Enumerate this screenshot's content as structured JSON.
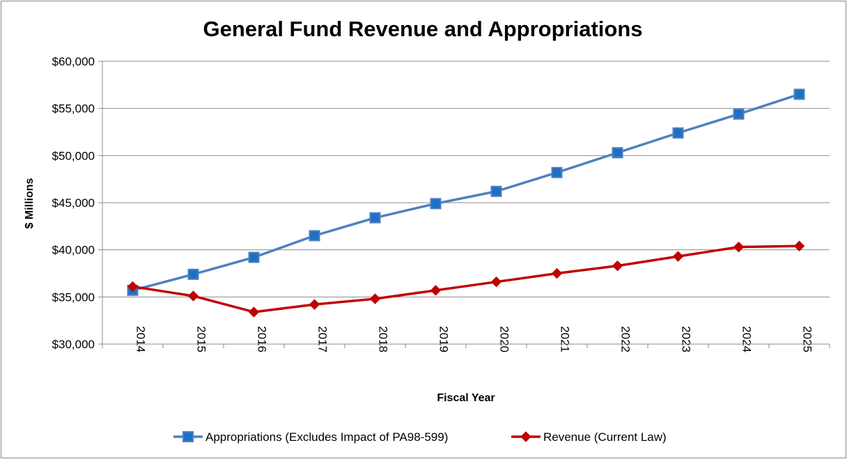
{
  "chart_data": {
    "type": "line",
    "title": "General Fund Revenue and Appropriations",
    "xlabel": "Fiscal Year",
    "ylabel": "$ Millions",
    "ylim": [
      30000,
      60000
    ],
    "yticks": [
      30000,
      35000,
      40000,
      45000,
      50000,
      55000,
      60000
    ],
    "ytick_labels": [
      "$30,000",
      "$35,000",
      "$40,000",
      "$45,000",
      "$50,000",
      "$55,000",
      "$60,000"
    ],
    "categories": [
      "2014",
      "2015",
      "2016",
      "2017",
      "2018",
      "2019",
      "2020",
      "2021",
      "2022",
      "2023",
      "2024",
      "2025"
    ],
    "grid": true,
    "legend_position": "bottom",
    "series": [
      {
        "name": "Appropriations (Excludes Impact of PA98-599)",
        "color": "#4F81BD",
        "marker": "square",
        "marker_fill": "#1F6FC5",
        "values": [
          35700,
          37400,
          39200,
          41500,
          43400,
          44900,
          46200,
          48200,
          50300,
          52400,
          54400,
          56500
        ]
      },
      {
        "name": "Revenue (Current Law)",
        "color": "#C00000",
        "marker": "diamond",
        "marker_fill": "#C00000",
        "values": [
          36100,
          35100,
          33400,
          34200,
          34800,
          35700,
          36600,
          37500,
          38300,
          39300,
          40300,
          40400
        ]
      }
    ]
  }
}
